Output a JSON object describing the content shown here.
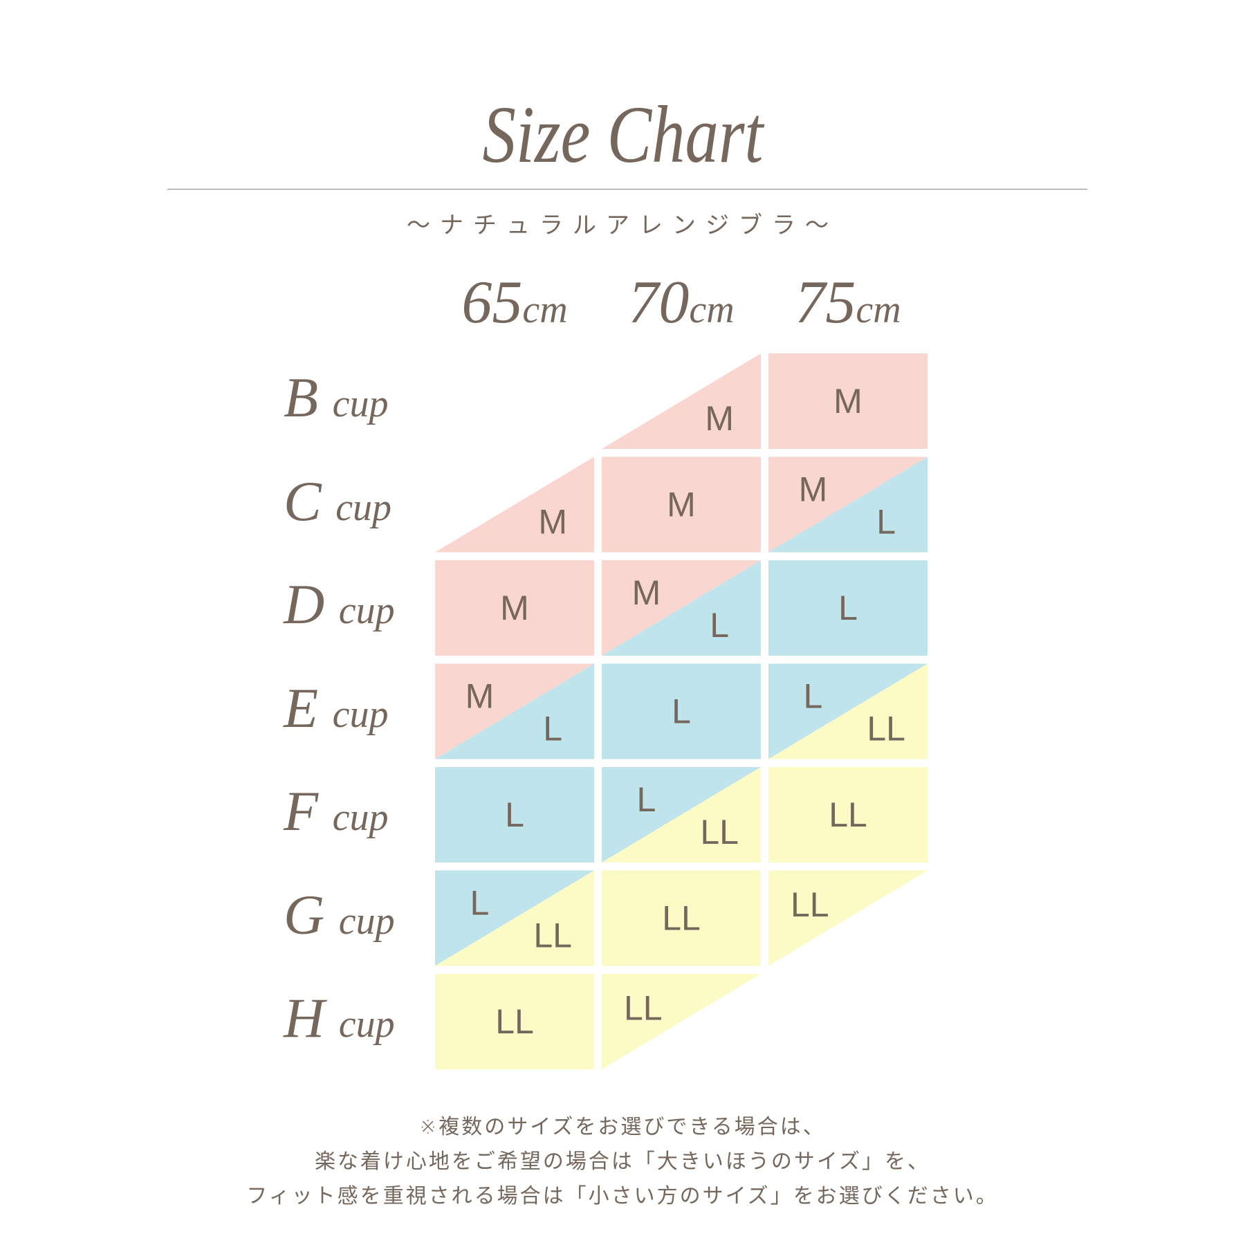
{
  "title": "Size Chart",
  "subtitle": "～ナチュラルアレンジブラ～",
  "colors": {
    "M": "#f9d6d0",
    "L": "#bfe4eb",
    "LL": "#fdfbc5",
    "text": "#76675c"
  },
  "chart_data": {
    "type": "table",
    "columns": [
      {
        "num": "65",
        "unit": "cm"
      },
      {
        "num": "70",
        "unit": "cm"
      },
      {
        "num": "75",
        "unit": "cm"
      }
    ],
    "rows": [
      {
        "letter": "B",
        "unit": "cup",
        "cells": [
          {
            "type": "empty"
          },
          {
            "type": "lower",
            "bottom": "M"
          },
          {
            "type": "full",
            "label": "M"
          }
        ]
      },
      {
        "letter": "C",
        "unit": "cup",
        "cells": [
          {
            "type": "lower",
            "bottom": "M"
          },
          {
            "type": "full",
            "label": "M"
          },
          {
            "type": "split",
            "top": "M",
            "bottom": "L"
          }
        ]
      },
      {
        "letter": "D",
        "unit": "cup",
        "cells": [
          {
            "type": "full",
            "label": "M"
          },
          {
            "type": "split",
            "top": "M",
            "bottom": "L"
          },
          {
            "type": "full",
            "label": "L"
          }
        ]
      },
      {
        "letter": "E",
        "unit": "cup",
        "cells": [
          {
            "type": "split",
            "top": "M",
            "bottom": "L"
          },
          {
            "type": "full",
            "label": "L"
          },
          {
            "type": "split",
            "top": "L",
            "bottom": "LL"
          }
        ]
      },
      {
        "letter": "F",
        "unit": "cup",
        "cells": [
          {
            "type": "full",
            "label": "L"
          },
          {
            "type": "split",
            "top": "L",
            "bottom": "LL"
          },
          {
            "type": "full",
            "label": "LL"
          }
        ]
      },
      {
        "letter": "G",
        "unit": "cup",
        "cells": [
          {
            "type": "split",
            "top": "L",
            "bottom": "LL"
          },
          {
            "type": "full",
            "label": "LL"
          },
          {
            "type": "upper",
            "top": "LL"
          }
        ]
      },
      {
        "letter": "H",
        "unit": "cup",
        "cells": [
          {
            "type": "full",
            "label": "LL"
          },
          {
            "type": "upper",
            "top": "LL"
          },
          {
            "type": "empty"
          }
        ]
      }
    ]
  },
  "footer": [
    "※複数のサイズをお選びできる場合は、",
    "楽な着け心地をご希望の場合は「大きいほうのサイズ」を、",
    "フィット感を重視される場合は「小さい方のサイズ」をお選びください。"
  ]
}
